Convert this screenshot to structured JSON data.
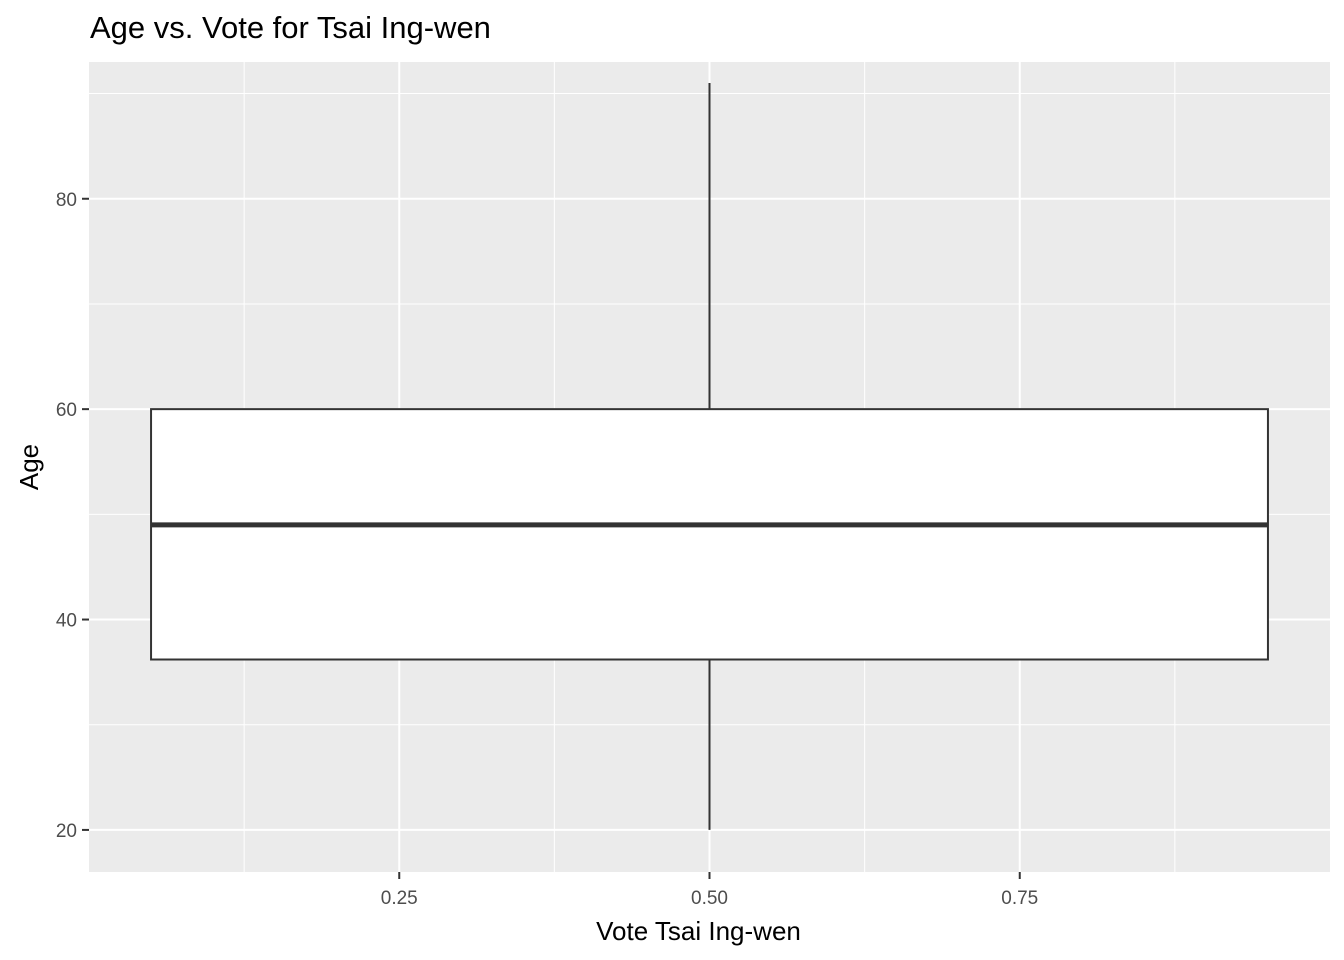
{
  "chart_data": {
    "type": "boxplot",
    "title": "Age vs. Vote for Tsai Ing-wen",
    "xlabel": "Vote Tsai Ing-wen",
    "ylabel": "Age",
    "xlim": [
      0.0,
      1.0
    ],
    "ylim": [
      16.0,
      93.0
    ],
    "x_ticks": [
      0.25,
      0.5,
      0.75
    ],
    "x_tick_labels": [
      "0.25",
      "0.50",
      "0.75"
    ],
    "y_ticks": [
      20,
      40,
      60,
      80
    ],
    "y_tick_labels": [
      "20",
      "40",
      "60",
      "80"
    ],
    "grid": true,
    "box": {
      "x_center": 0.5,
      "x_from": 0.05,
      "x_to": 0.95,
      "whisker_low": 20,
      "q1": 36.2,
      "median": 49,
      "q3": 60,
      "whisker_high": 91
    },
    "colors": {
      "panel": "#ebebeb",
      "grid": "#ffffff",
      "box_fill": "#ffffff",
      "box_line": "#333333"
    }
  }
}
